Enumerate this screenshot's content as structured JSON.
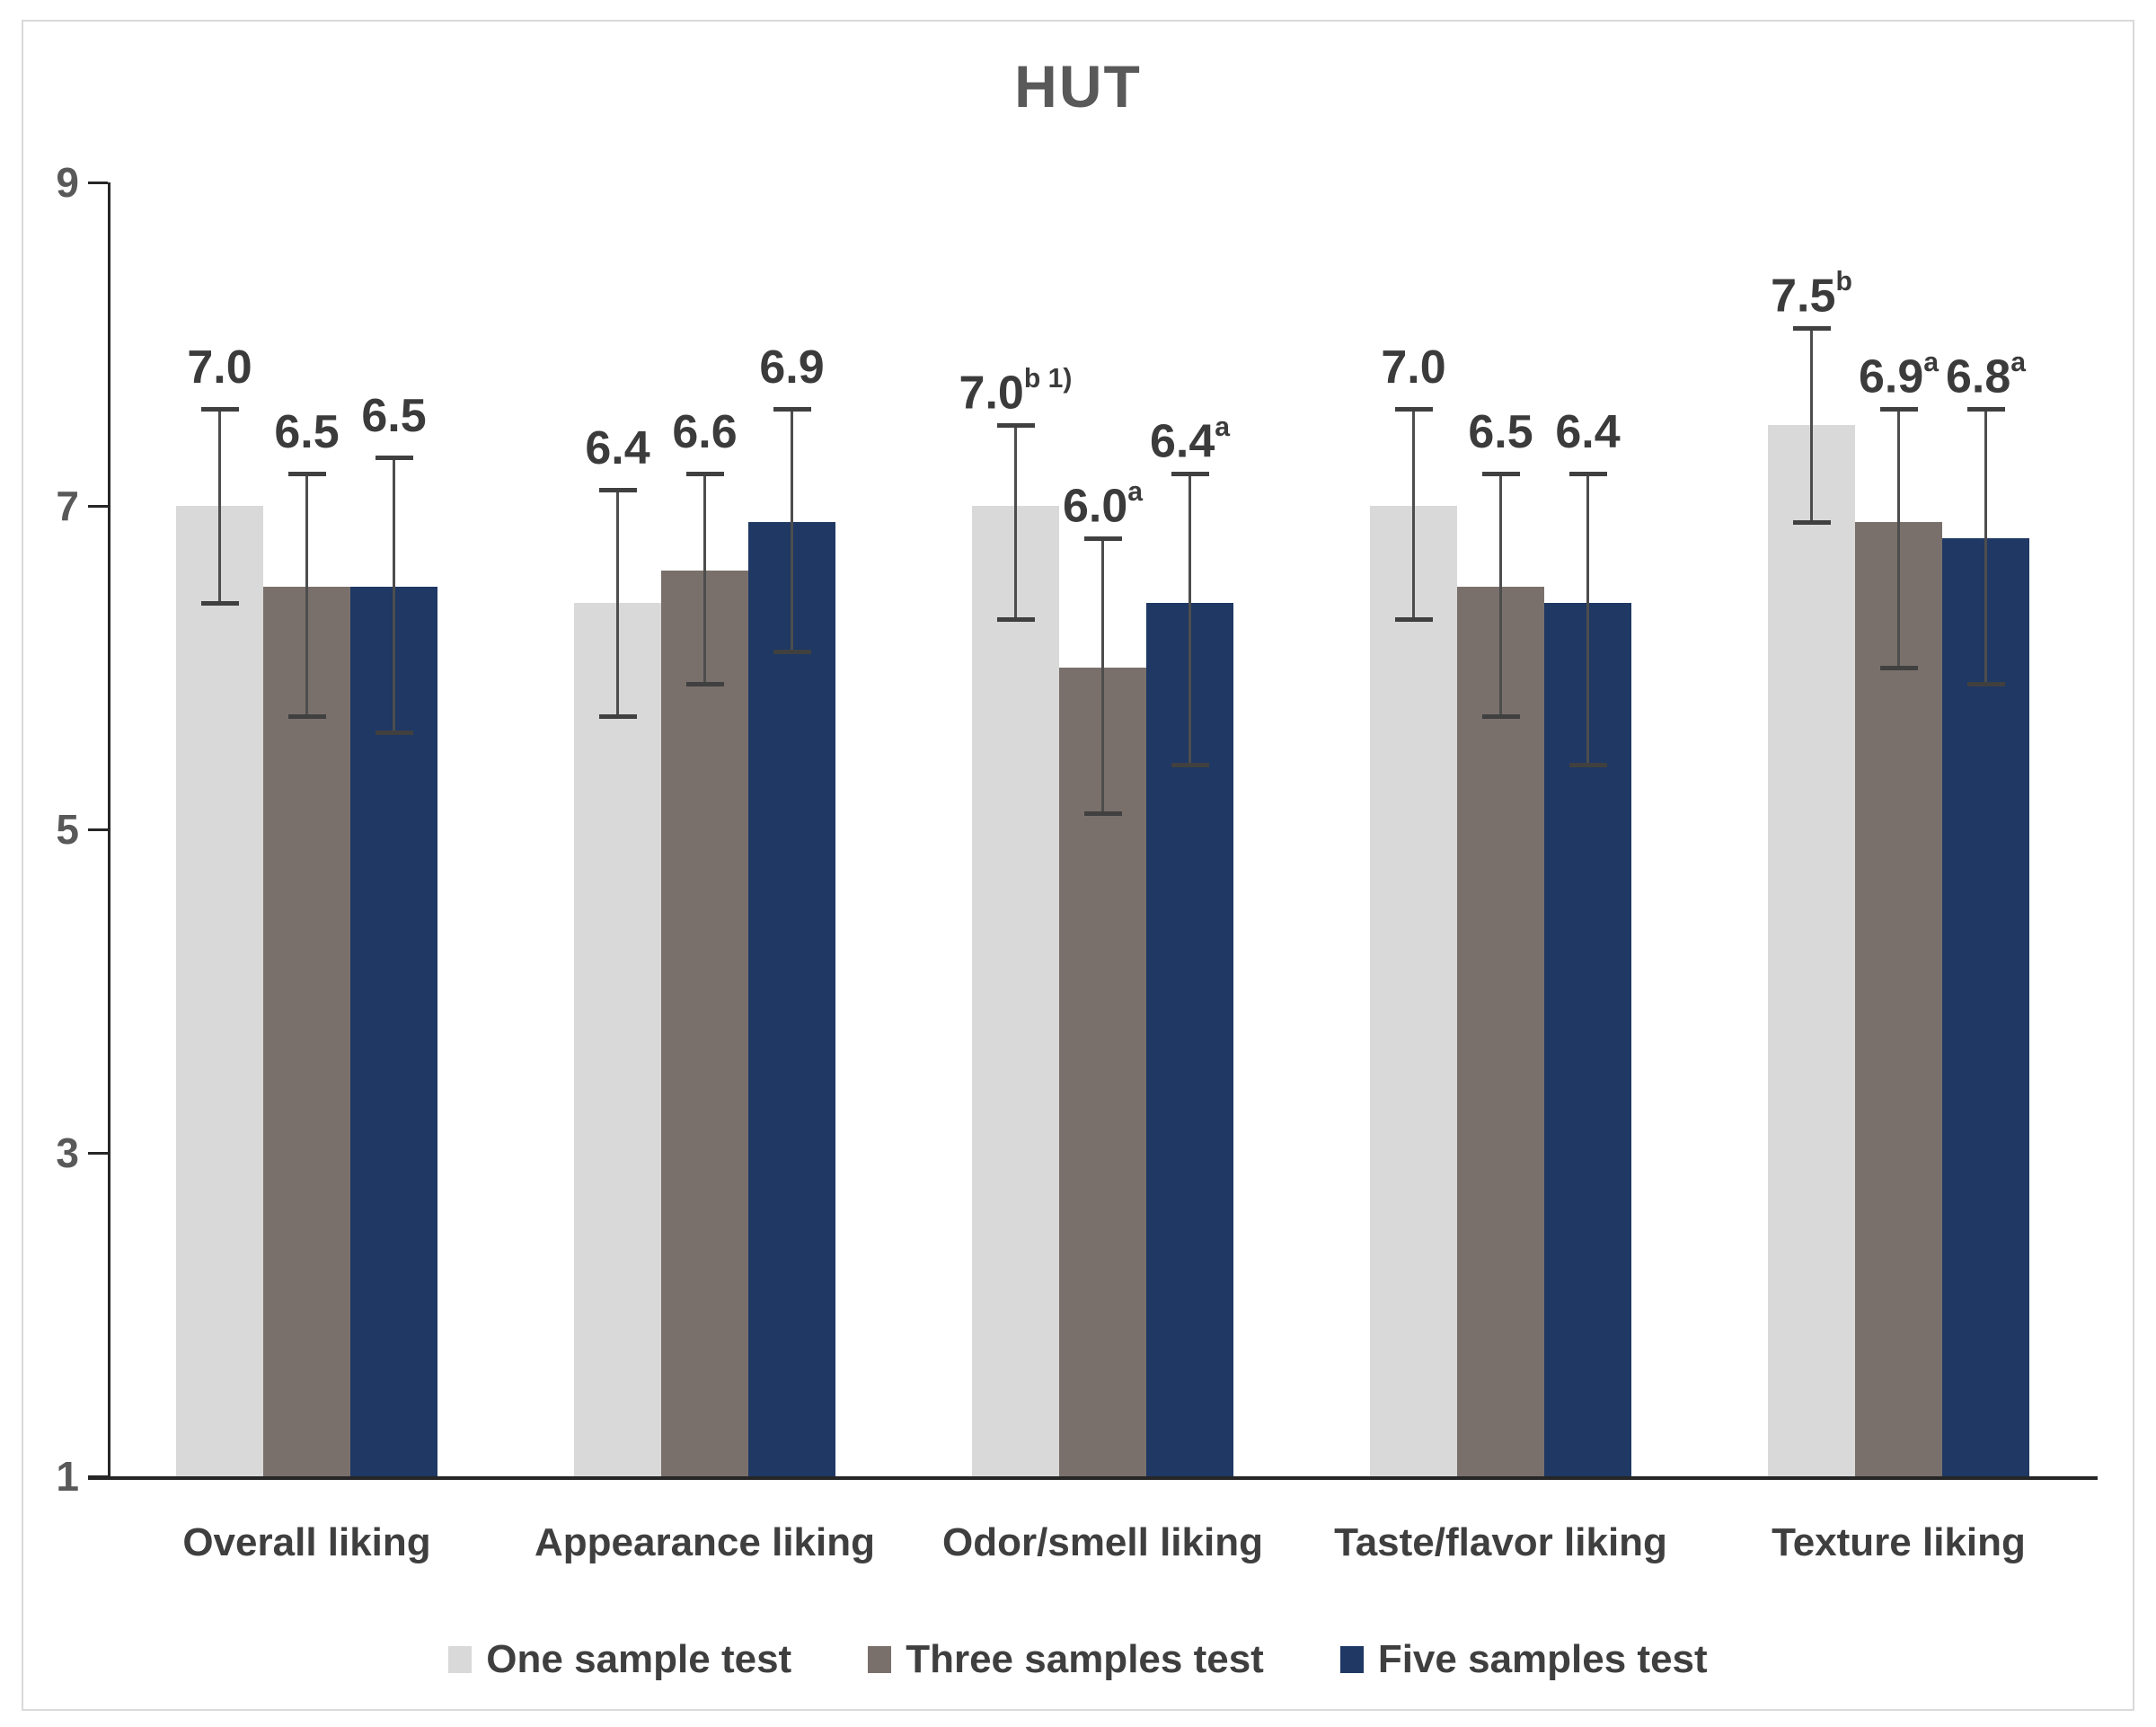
{
  "page": {
    "background": "#ffffff",
    "frame_border_color": "#d9d9d9"
  },
  "colors": {
    "axis": "#262626",
    "error_bar": "#4d4d4d",
    "axis_text": "#595959",
    "label_text": "#3b3b3b"
  },
  "chart_data": {
    "type": "bar",
    "title": "HUT",
    "categories": [
      "Overall liking",
      "Appearance liking",
      "Odor/smell liking",
      "Taste/flavor liking",
      "Texture liking"
    ],
    "series": [
      {
        "name": "One sample test",
        "color": "#d9d9d9",
        "values": [
          7.0,
          6.4,
          7.0,
          7.0,
          7.5
        ],
        "label_sup": [
          "",
          "",
          "b 1)",
          "",
          "b"
        ],
        "error_high": [
          7.6,
          7.1,
          7.5,
          7.6,
          8.1
        ],
        "error_low": [
          6.4,
          5.7,
          6.3,
          6.3,
          6.9
        ]
      },
      {
        "name": "Three samples test",
        "color": "#7a706b",
        "values": [
          6.5,
          6.6,
          6.0,
          6.5,
          6.9
        ],
        "label_sup": [
          "",
          "",
          "a",
          "",
          "a"
        ],
        "error_high": [
          7.2,
          7.2,
          6.8,
          7.2,
          7.6
        ],
        "error_low": [
          5.7,
          5.9,
          5.1,
          5.7,
          6.0
        ]
      },
      {
        "name": "Five samples test",
        "color": "#1f3864",
        "values": [
          6.5,
          6.9,
          6.4,
          6.4,
          6.8
        ],
        "label_sup": [
          "",
          "",
          "a",
          "",
          "a"
        ],
        "error_high": [
          7.3,
          7.6,
          7.2,
          7.2,
          7.6
        ],
        "error_low": [
          5.6,
          6.1,
          5.4,
          5.4,
          5.9
        ]
      }
    ],
    "y_axis": {
      "min": 1,
      "max": 9,
      "tick_values": [
        9,
        7,
        5,
        3,
        1
      ],
      "tick_labels": [
        "9",
        "7",
        "5",
        "3",
        "1"
      ]
    },
    "data_label_format": "0.0",
    "legend_position": "bottom",
    "grid": false
  }
}
